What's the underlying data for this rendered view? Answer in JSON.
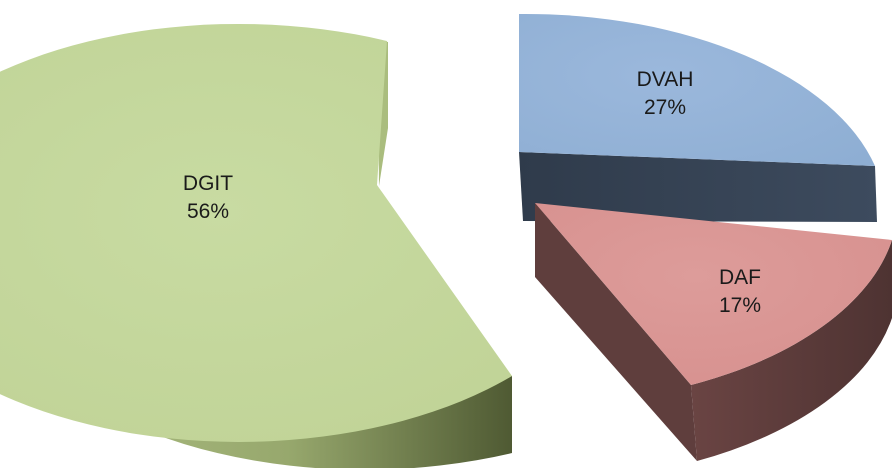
{
  "chart_data": {
    "type": "pie",
    "title": "",
    "legend": "none",
    "slices": [
      {
        "label": "DGIT",
        "value": 56,
        "value_label": "56%",
        "color": "#c3d69b",
        "side_color": "#6f7f45"
      },
      {
        "label": "DVAH",
        "value": 27,
        "value_label": "27%",
        "color": "#95b3d7",
        "side_color": "#3a4759"
      },
      {
        "label": "DAF",
        "value": 17,
        "value_label": "17%",
        "color": "#d99694",
        "side_color": "#5c3b3a"
      }
    ]
  }
}
